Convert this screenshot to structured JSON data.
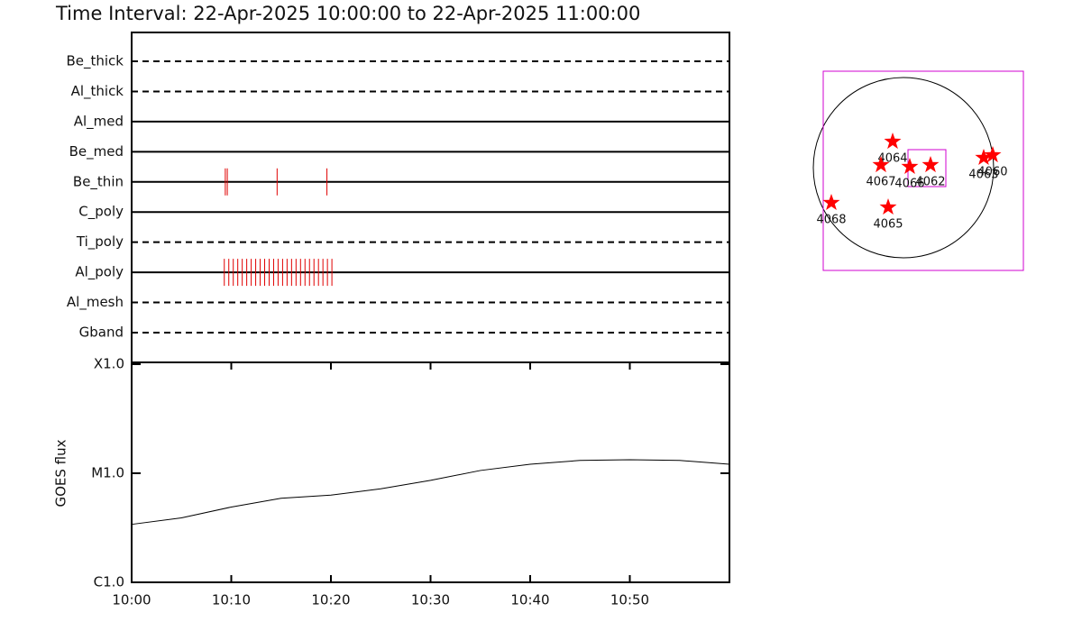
{
  "chart_data": [
    {
      "type": "timeline",
      "title": "Time Interval: 22-Apr-2025 10:00:00 to 22-Apr-2025 11:00:00",
      "categories": [
        "Be_thick",
        "Al_thick",
        "Al_med",
        "Be_med",
        "Be_thin",
        "C_poly",
        "Ti_poly",
        "Al_poly",
        "Al_mesh",
        "Gband"
      ],
      "line_styles": [
        "dashed",
        "dashed",
        "solid",
        "solid",
        "solid",
        "solid",
        "dashed",
        "solid",
        "dashed",
        "dashed"
      ],
      "events": [
        [],
        [],
        [],
        [],
        [
          9.4,
          9.6,
          14.6,
          19.6
        ],
        [],
        [],
        [
          9.3,
          9.75,
          10.2,
          10.65,
          11.1,
          11.55,
          12.0,
          12.45,
          12.9,
          13.35,
          13.8,
          14.25,
          14.7,
          15.15,
          15.6,
          16.05,
          16.5,
          16.95,
          17.4,
          17.85,
          18.3,
          18.75,
          19.2,
          19.65,
          20.1
        ],
        [],
        []
      ],
      "color": "#e00000",
      "xlim": [
        0,
        60
      ]
    },
    {
      "type": "line",
      "y_label": "GOES flux",
      "x": [
        0,
        5,
        10,
        15,
        20,
        25,
        30,
        35,
        40,
        45,
        50,
        55,
        60
      ],
      "values": [
        3.4e-06,
        3.9e-06,
        4.9e-06,
        5.9e-06,
        6.3e-06,
        7.2e-06,
        8.6e-06,
        1.06e-05,
        1.21e-05,
        1.31e-05,
        1.33e-05,
        1.31e-05,
        1.21e-05
      ],
      "color": "#000000",
      "log_y": true,
      "xlim": [
        0,
        60
      ],
      "ylim": [
        1e-06,
        0.0001
      ],
      "xticks": [
        {
          "value": 0,
          "label": "10:00"
        },
        {
          "value": 10,
          "label": "10:10"
        },
        {
          "value": 20,
          "label": "10:20"
        },
        {
          "value": 30,
          "label": "10:30"
        },
        {
          "value": 40,
          "label": "10:40"
        },
        {
          "value": 50,
          "label": "10:50"
        }
      ],
      "yticks": [
        {
          "value": 1e-06,
          "label": "C1.0"
        },
        {
          "value": 1e-05,
          "label": "M1.0"
        },
        {
          "value": 0.0001,
          "label": "X1.0"
        }
      ]
    },
    {
      "type": "scatter",
      "color": "#ff0000",
      "labels": [
        "4064",
        "4067",
        "4066",
        "4062",
        "4063",
        "4060",
        "4068",
        "4065"
      ],
      "x": [
        -115,
        -240,
        67,
        288,
        854,
        950,
        -768,
        -163
      ],
      "y": [
        278,
        29,
        10,
        29,
        106,
        134,
        -374,
        -422
      ]
    }
  ]
}
